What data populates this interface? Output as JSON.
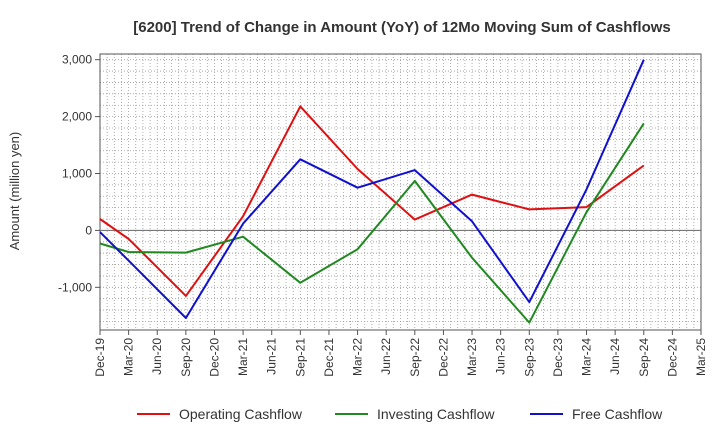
{
  "chart_data": {
    "type": "line",
    "title": "[6200]  Trend of Change in Amount (YoY) of 12Mo Moving Sum of Cashflows",
    "xlabel": "",
    "ylabel": "Amount (million yen)",
    "ylim": [
      -1750,
      3100
    ],
    "yticks": [
      -1000,
      0,
      1000,
      2000,
      3000
    ],
    "ytick_labels": [
      "-1,000",
      "0",
      "1,000",
      "2,000",
      "3,000"
    ],
    "grid": true,
    "legend_position": "bottom",
    "categories": [
      "Dec-19",
      "Mar-20",
      "Jun-20",
      "Sep-20",
      "Dec-20",
      "Mar-21",
      "Jun-21",
      "Sep-21",
      "Dec-21",
      "Mar-22",
      "Jun-22",
      "Sep-22",
      "Dec-22",
      "Mar-23",
      "Jun-23",
      "Sep-23",
      "Dec-23",
      "Mar-24",
      "Jun-24",
      "Sep-24",
      "Dec-24",
      "Mar-25"
    ],
    "series": [
      {
        "name": "Operating Cashflow",
        "color": "#dd1111",
        "values": [
          200,
          -150,
          null,
          -1150,
          null,
          250,
          null,
          2180,
          null,
          1080,
          null,
          190,
          null,
          630,
          null,
          370,
          null,
          410,
          null,
          1140,
          null,
          null
        ]
      },
      {
        "name": "Investing Cashflow",
        "color": "#228822",
        "values": [
          -230,
          -380,
          null,
          -390,
          null,
          -110,
          null,
          -920,
          null,
          -330,
          null,
          870,
          null,
          -480,
          null,
          -1620,
          null,
          320,
          null,
          1880,
          null,
          null
        ]
      },
      {
        "name": "Free Cashflow",
        "color": "#1111cc",
        "values": [
          -30,
          -530,
          null,
          -1540,
          null,
          120,
          null,
          1250,
          null,
          750,
          null,
          1060,
          null,
          160,
          null,
          -1260,
          null,
          720,
          null,
          3000,
          null,
          null
        ]
      }
    ]
  }
}
